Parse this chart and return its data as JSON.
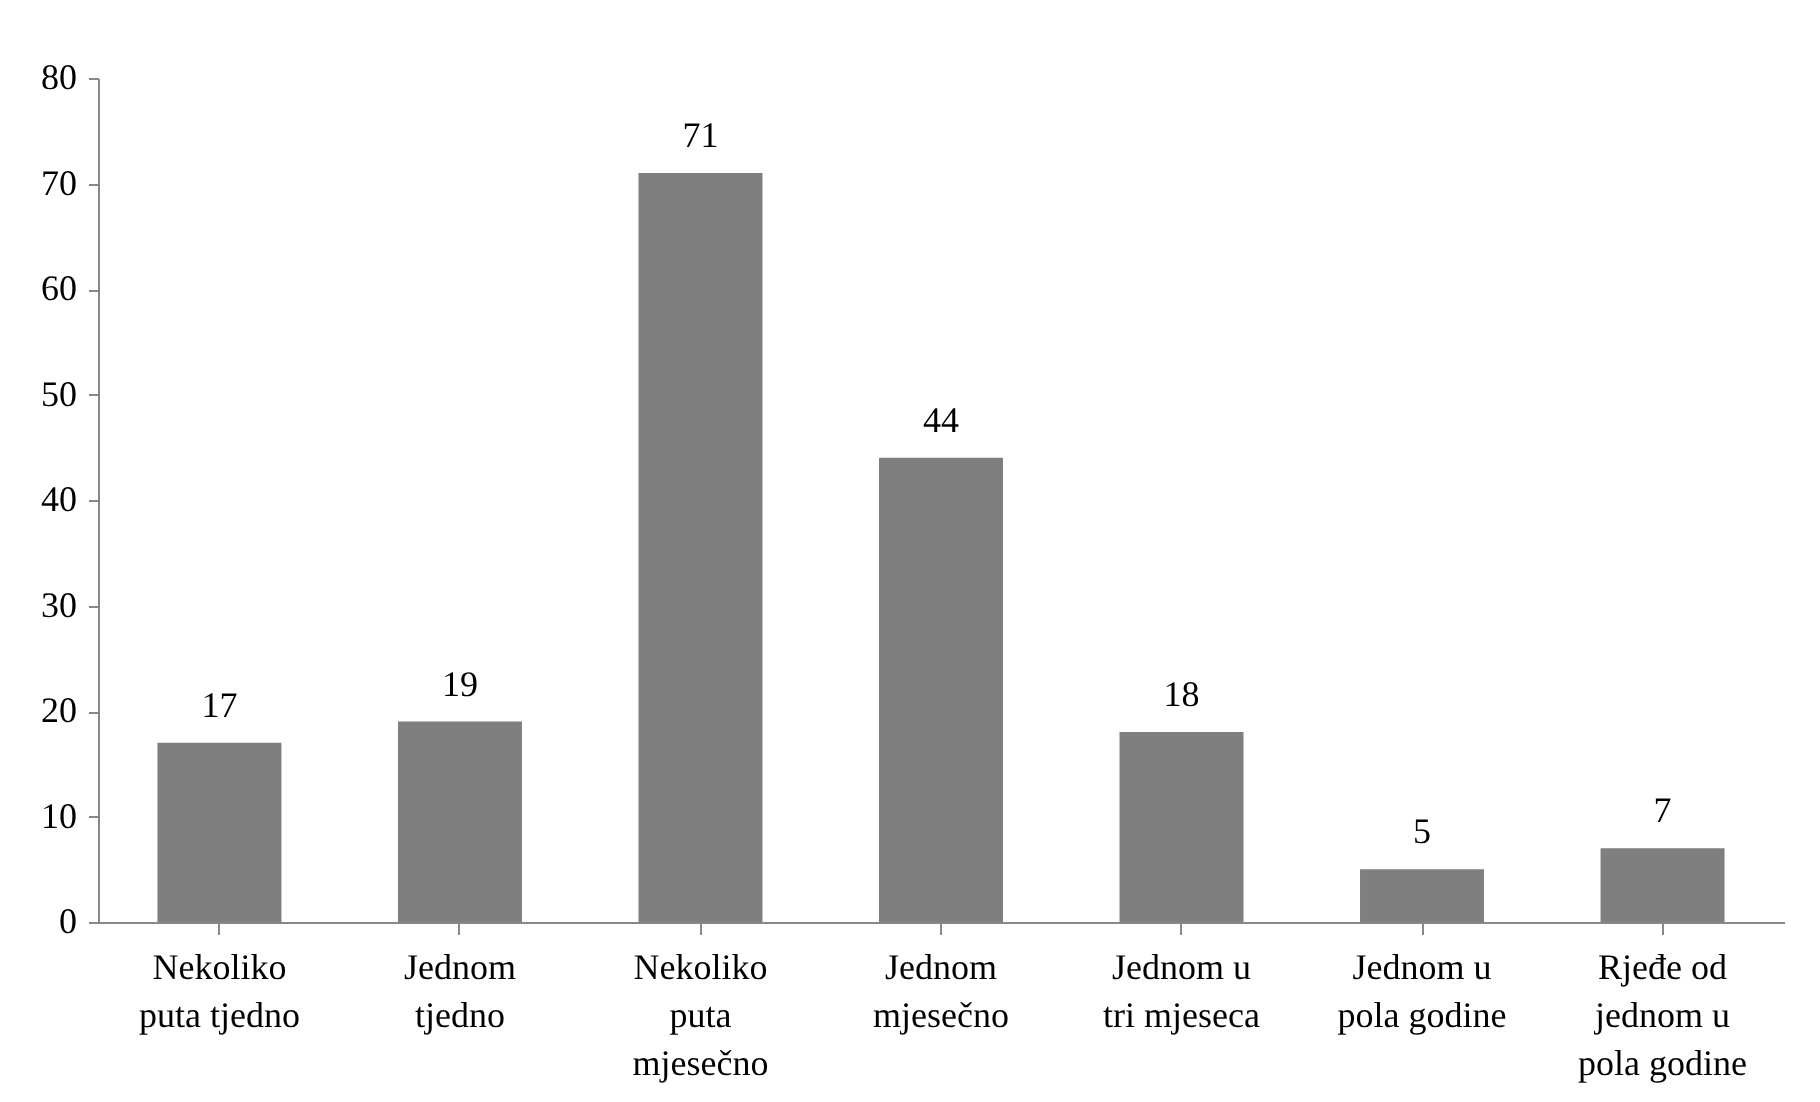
{
  "chart_data": {
    "type": "bar",
    "categories": [
      "Nekoliko puta tjedno",
      "Jednom tjedno",
      "Nekoliko puta mjesečno",
      "Jednom mjesečno",
      "Jednom u tri mjeseca",
      "Jednom u pola godine",
      "Rjeđe od jednom u pola godine"
    ],
    "values": [
      17,
      19,
      71,
      44,
      18,
      5,
      7
    ],
    "color": "#7f7f7f",
    "ylim": [
      0,
      80
    ],
    "yticks": [
      0,
      10,
      20,
      30,
      40,
      50,
      60,
      70,
      80
    ],
    "grid": false,
    "data_labels": true
  }
}
